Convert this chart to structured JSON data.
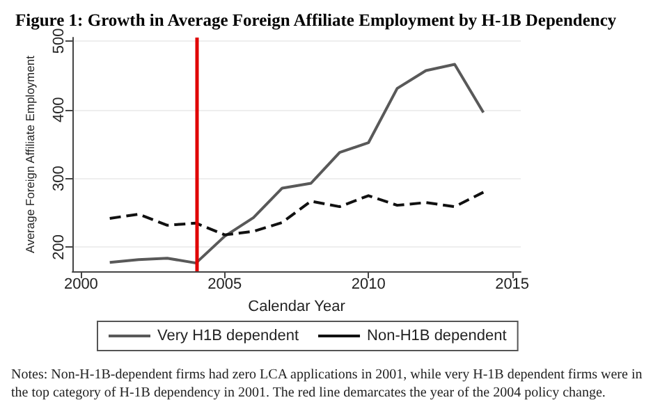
{
  "chart_data": {
    "type": "line",
    "title": "Figure 1: Growth in Average Foreign Affiliate Employment by H-1B Dependency",
    "xlabel": "Calendar Year",
    "ylabel": "Average Foreign Affiliate Employment",
    "x": [
      2001,
      2002,
      2003,
      2004,
      2005,
      2006,
      2007,
      2008,
      2009,
      2010,
      2011,
      2012,
      2013,
      2014
    ],
    "series": [
      {
        "name": "Very H1B dependent",
        "color": "#595959",
        "line_style": "solid",
        "values": [
          178,
          182,
          184,
          177,
          216,
          243,
          286,
          293,
          338,
          352,
          431,
          457,
          466,
          396
        ]
      },
      {
        "name": "Non-H1B dependent",
        "color": "#111111",
        "line_style": "dashed",
        "values": [
          242,
          248,
          232,
          235,
          218,
          223,
          236,
          267,
          259,
          275,
          261,
          265,
          259,
          280
        ]
      }
    ],
    "xlim": [
      1999.7,
      2015.3
    ],
    "xticks": [
      2000,
      2005,
      2010,
      2015
    ],
    "ylim": [
      165,
      505
    ],
    "yticks": [
      200,
      300,
      400,
      500
    ],
    "ref_lines": [
      {
        "axis": "x",
        "value": 2004,
        "color": "#e00000"
      }
    ],
    "grid": "y",
    "legend": "bottom",
    "marker": "none",
    "annotations": [
      "Notes: Non-H-1B-dependent firms had zero LCA applications in 2001, while very H-1B dependent firms were in the top category of H-1B dependency in 2001. The red line demarcates the year of the 2004 policy change."
    ]
  }
}
